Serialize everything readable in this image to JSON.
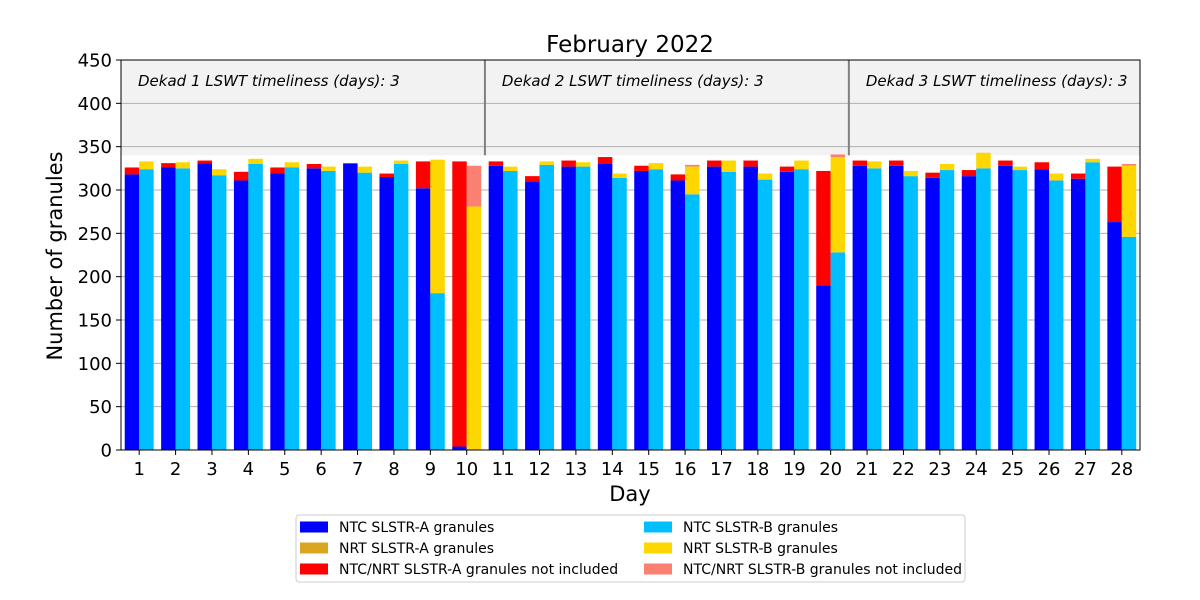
{
  "chart_data": {
    "type": "bar",
    "stacked": true,
    "title": "February 2022",
    "xlabel": "Day",
    "ylabel": "Number of granules",
    "ylim": [
      0,
      450
    ],
    "yticks": [
      0,
      50,
      100,
      150,
      200,
      250,
      300,
      350,
      400,
      450
    ],
    "categories": [
      "1",
      "2",
      "3",
      "4",
      "5",
      "6",
      "7",
      "8",
      "9",
      "10",
      "11",
      "12",
      "13",
      "14",
      "15",
      "16",
      "17",
      "18",
      "19",
      "20",
      "21",
      "22",
      "23",
      "24",
      "25",
      "26",
      "27",
      "28"
    ],
    "grid": "horizontal",
    "shaded_band": [
      340,
      450
    ],
    "dekad_separators_after_day": [
      10,
      20
    ],
    "dekad_annotations": [
      "Dekad 1 LSWT timeliness (days): 3",
      "Dekad 2 LSWT timeliness (days): 3",
      "Dekad 3 LSWT timeliness (days): 3"
    ],
    "slstr_a": {
      "ntc": [
        318,
        326,
        331,
        311,
        319,
        325,
        330,
        315,
        302,
        4,
        328,
        310,
        327,
        330,
        322,
        311,
        327,
        327,
        321,
        190,
        328,
        328,
        314,
        316,
        328,
        324,
        313,
        263
      ],
      "nrt": [
        0,
        0,
        0,
        0,
        0,
        0,
        0,
        0,
        0,
        0,
        0,
        0,
        0,
        0,
        0,
        0,
        0,
        0,
        0,
        0,
        0,
        0,
        0,
        0,
        0,
        0,
        0,
        0
      ],
      "not_included": [
        8,
        5,
        3,
        10,
        7,
        5,
        1,
        4,
        31,
        329,
        5,
        6,
        7,
        8,
        6,
        7,
        7,
        7,
        6,
        132,
        6,
        6,
        6,
        7,
        6,
        8,
        6,
        64
      ]
    },
    "slstr_b": {
      "ntc": [
        324,
        325,
        317,
        330,
        326,
        322,
        320,
        330,
        181,
        0,
        322,
        329,
        327,
        314,
        324,
        295,
        321,
        312,
        324,
        228,
        325,
        316,
        323,
        325,
        323,
        311,
        332,
        246
      ],
      "nrt": [
        9,
        7,
        7,
        6,
        6,
        5,
        7,
        4,
        154,
        281,
        5,
        4,
        5,
        5,
        7,
        32,
        13,
        7,
        10,
        110,
        8,
        6,
        7,
        18,
        4,
        8,
        4,
        82
      ],
      "not_included": [
        0,
        0,
        0,
        0,
        0,
        0,
        0,
        0,
        0,
        47,
        0,
        0,
        0,
        0,
        0,
        2,
        0,
        0,
        0,
        3,
        0,
        0,
        0,
        0,
        0,
        0,
        0,
        2
      ]
    },
    "legend": {
      "placement": "bottom-center",
      "entries": [
        {
          "label": "NTC SLSTR-A granules",
          "color": "#0000ff"
        },
        {
          "label": "NTC SLSTR-B granules",
          "color": "#00bfff"
        },
        {
          "label": "NRT SLSTR-A granules",
          "color": "#daa520"
        },
        {
          "label": "NRT SLSTR-B granules",
          "color": "#ffd700"
        },
        {
          "label": "NTC/NRT SLSTR-A granules not included",
          "color": "#ff0000"
        },
        {
          "label": "NTC/NRT SLSTR-B granules not included",
          "color": "#fa8072"
        }
      ]
    },
    "colors": {
      "ntc_a": "#0000ff",
      "nrt_a": "#daa520",
      "excl_a": "#ff0000",
      "ntc_b": "#00bfff",
      "nrt_b": "#ffd700",
      "excl_b": "#fa8072",
      "band": "#f2f2f2",
      "grid": "#b0b0b0",
      "separator": "#808080"
    }
  }
}
